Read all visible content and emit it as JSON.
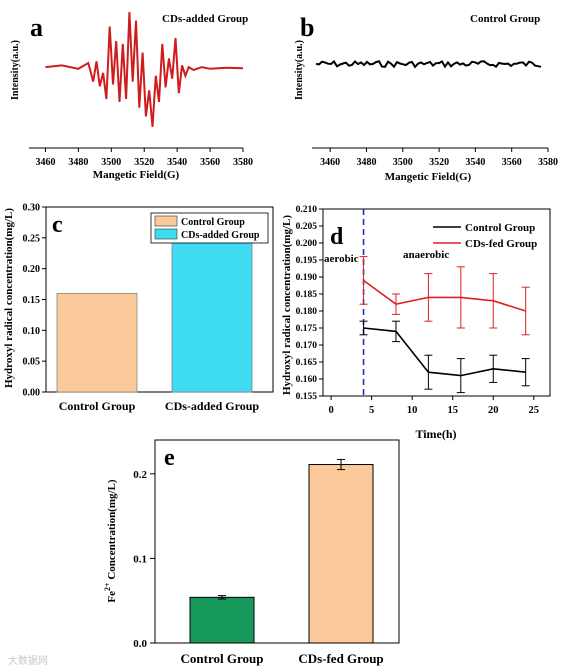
{
  "figure": {
    "panel_labels": {
      "a": "a",
      "b": "b",
      "c": "c",
      "d": "d",
      "e": "e"
    },
    "watermark": "大数据网"
  },
  "chart_data": [
    {
      "id": "a",
      "type": "line",
      "title": "CDs-added Group",
      "xlabel": "Mangetic Field(G)",
      "ylabel": "Intensity(a.u.)",
      "xlim": [
        3450,
        3580
      ],
      "xticks": [
        3460,
        3480,
        3500,
        3520,
        3540,
        3560,
        3580
      ],
      "color": "#d01c1c",
      "x": [
        3460,
        3470,
        3480,
        3486,
        3489,
        3491,
        3493,
        3495,
        3497,
        3499,
        3501,
        3503,
        3505,
        3507,
        3509,
        3511,
        3513,
        3515,
        3517,
        3519,
        3521,
        3523,
        3525,
        3527,
        3529,
        3531,
        3533,
        3535,
        3537,
        3539,
        3541,
        3543,
        3545,
        3547,
        3550,
        3555,
        3560,
        3570,
        3580
      ],
      "y": [
        0.05,
        0.08,
        0.02,
        0.12,
        -0.2,
        0.15,
        -0.28,
        -0.05,
        -0.5,
        0.75,
        -0.25,
        0.5,
        -0.55,
        0.45,
        -0.5,
        1.0,
        -0.2,
        0.85,
        -0.65,
        0.3,
        -0.8,
        -0.35,
        -0.98,
        -0.1,
        -0.55,
        0.45,
        -0.3,
        0.2,
        -0.15,
        0.55,
        -0.4,
        0.08,
        -0.1,
        0.05,
        0.0,
        0.05,
        0.02,
        0.04,
        0.03
      ]
    },
    {
      "id": "b",
      "type": "line",
      "title": "Control Group",
      "xlabel": "Mangetic Field(G)",
      "ylabel": "Intensity(a.u.)",
      "xlim": [
        3450,
        3580
      ],
      "xticks": [
        3460,
        3480,
        3500,
        3520,
        3540,
        3560,
        3580
      ],
      "color": "#000000",
      "note_noise": "flat noisy baseline"
    },
    {
      "id": "c",
      "type": "bar",
      "categories": [
        "Control Group",
        "CDs-added Group"
      ],
      "values": [
        0.16,
        0.258
      ],
      "colors": [
        "#fbc99a",
        "#3fdbf2"
      ],
      "ylabel": "Hydroxyl radical concentration(mg/L)",
      "ylim": [
        0,
        0.3
      ],
      "yticks": [
        "0.00",
        "0.05",
        "0.10",
        "0.15",
        "0.20",
        "0.25",
        "0.30"
      ],
      "legend": [
        "Control Group",
        "CDs-added Group"
      ],
      "legend_position": "top-right"
    },
    {
      "id": "d",
      "type": "line",
      "x": [
        4,
        8,
        12,
        16,
        20,
        24
      ],
      "series": [
        {
          "name": "Control Group",
          "color": "#000000",
          "values": [
            0.175,
            0.174,
            0.162,
            0.161,
            0.163,
            0.162
          ],
          "errors": [
            0.002,
            0.003,
            0.005,
            0.005,
            0.004,
            0.004
          ]
        },
        {
          "name": "CDs-fed Group",
          "color": "#e02020",
          "values": [
            0.189,
            0.182,
            0.184,
            0.184,
            0.183,
            0.18
          ],
          "errors": [
            0.007,
            0.003,
            0.007,
            0.009,
            0.008,
            0.007
          ]
        }
      ],
      "xlabel": "Time(h)",
      "ylabel": "Hydroxyl radical concentration(mg/L)",
      "xlim": [
        -1,
        27
      ],
      "ylim": [
        0.155,
        0.21
      ],
      "xticks": [
        0,
        5,
        10,
        15,
        20,
        25
      ],
      "yticks": [
        "0.155",
        "0.160",
        "0.165",
        "0.170",
        "0.175",
        "0.180",
        "0.185",
        "0.190",
        "0.195",
        "0.200",
        "0.205",
        "0.210"
      ],
      "annotations": [
        "aerobic",
        "anaerobic"
      ],
      "dashed_line_x": 4,
      "legend_position": "top-right"
    },
    {
      "id": "e",
      "type": "bar",
      "categories": [
        "Control Group",
        "CDs-fed Group"
      ],
      "values": [
        0.054,
        0.211
      ],
      "errors": [
        0.002,
        0.006
      ],
      "colors": [
        "#16985a",
        "#fbc99a"
      ],
      "ylabel_html": "Fe<sup>2+</sup> Concentration(mg/L)",
      "ylabel_parts": [
        "Fe",
        "2+",
        " Concentration(mg/L)"
      ],
      "ylim": [
        0,
        0.24
      ],
      "yticks": [
        "0.0",
        "0.1",
        "0.2"
      ]
    }
  ]
}
